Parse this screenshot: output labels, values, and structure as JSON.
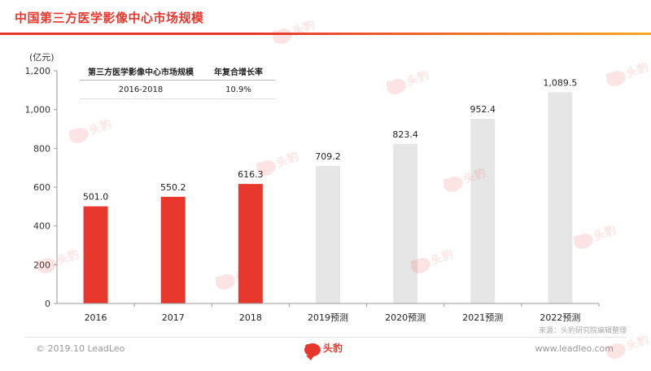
{
  "header": {
    "title": "中国第三方医学影像中心市场规模"
  },
  "chart_data": {
    "type": "bar",
    "unit_label": "(亿元)",
    "categories": [
      "2016",
      "2017",
      "2018",
      "2019预测",
      "2020预测",
      "2021预测",
      "2022预测"
    ],
    "values": [
      501.0,
      550.2,
      616.3,
      709.2,
      823.4,
      952.4,
      1089.5
    ],
    "data_labels": [
      "501.0",
      "550.2",
      "616.3",
      "709.2",
      "823.4",
      "952.4",
      "1,089.5"
    ],
    "y_ticks": [
      "0",
      "200",
      "400",
      "600",
      "800",
      "1,000",
      "1,200"
    ],
    "ylim": [
      0,
      1200
    ],
    "grid": false,
    "colors": {
      "actual": "#e8382e",
      "forecast": "#e6e6e6"
    }
  },
  "cagr_table": {
    "headers": [
      "第三方医学影像中心市场规模",
      "年复合增长率"
    ],
    "rows": [
      [
        "2016-2018",
        "10.9%"
      ]
    ]
  },
  "footer": {
    "source": "来源：头豹研究院编辑整理",
    "copyright": "© 2019.10 LeadLeo",
    "website": "www.leadleo.com",
    "logo_text": "头豹"
  },
  "watermark": {
    "text": "头豹"
  }
}
